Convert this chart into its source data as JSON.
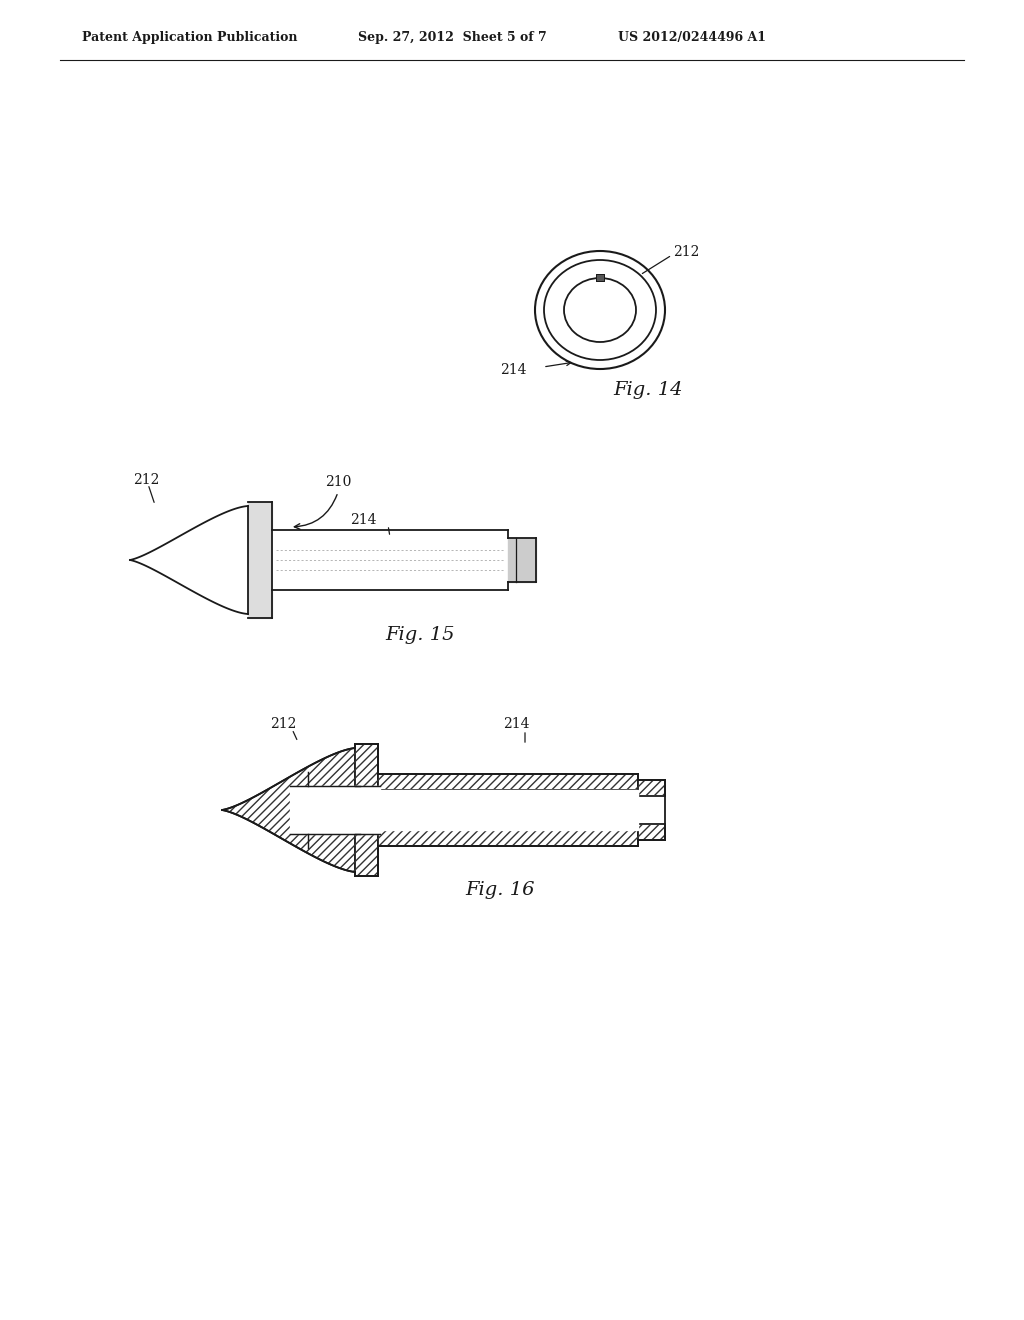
{
  "background_color": "#ffffff",
  "header_left": "Patent Application Publication",
  "header_mid": "Sep. 27, 2012  Sheet 5 of 7",
  "header_right": "US 2012/0244496 A1",
  "fig14_label": "Fig. 14",
  "fig15_label": "Fig. 15",
  "fig16_label": "Fig. 16",
  "label_212": "212",
  "label_214": "214",
  "label_210": "210",
  "line_color": "#1a1a1a"
}
